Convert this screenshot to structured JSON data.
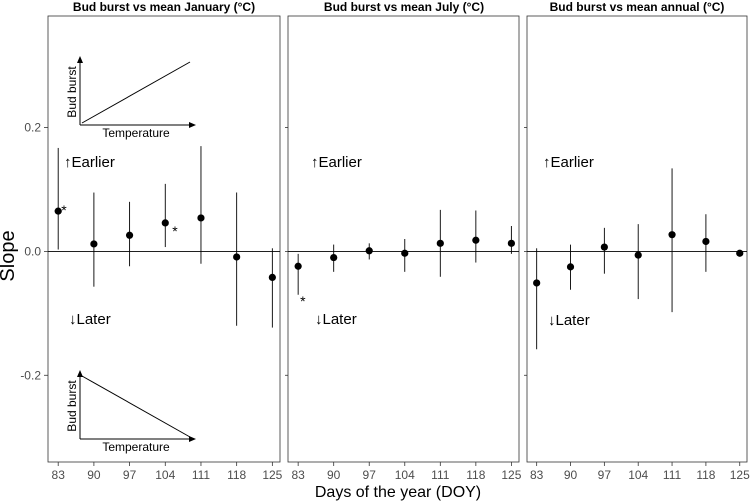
{
  "chart_data": {
    "type": "scatter",
    "ylabel": "Slope",
    "xlabel": "Days of the year (DOY)",
    "x_ticks": [
      83,
      90,
      97,
      104,
      111,
      118,
      125
    ],
    "y_ticks": [
      -0.2,
      0.0,
      0.2
    ],
    "y_tick_labels": [
      "-0.2",
      "0.0",
      "0.2"
    ],
    "ylim": [
      -0.34,
      0.38
    ],
    "xlim": [
      81,
      126.5
    ],
    "zero_line": true,
    "grid": false,
    "annotations": {
      "earlier": "↑Earlier",
      "later": "↓Later"
    },
    "inset": {
      "ylabel": "Bud burst",
      "xlabel": "Temperature"
    },
    "panels": [
      {
        "title": "Bud burst vs mean January (°C)",
        "points": [
          {
            "x": 83,
            "y": 0.065,
            "lo": 0.003,
            "hi": 0.167,
            "sig": "*"
          },
          {
            "x": 90,
            "y": 0.012,
            "lo": -0.057,
            "hi": 0.095,
            "sig": ""
          },
          {
            "x": 97,
            "y": 0.026,
            "lo": -0.024,
            "hi": 0.08,
            "sig": ""
          },
          {
            "x": 104,
            "y": 0.046,
            "lo": 0.007,
            "hi": 0.109,
            "sig": "*"
          },
          {
            "x": 111,
            "y": 0.054,
            "lo": -0.02,
            "hi": 0.17,
            "sig": ""
          },
          {
            "x": 118,
            "y": -0.009,
            "lo": -0.12,
            "hi": 0.095,
            "sig": ""
          },
          {
            "x": 125,
            "y": -0.042,
            "lo": -0.123,
            "hi": 0.005,
            "sig": ""
          }
        ]
      },
      {
        "title": "Bud burst vs mean July (°C)",
        "points": [
          {
            "x": 83,
            "y": -0.024,
            "lo": -0.07,
            "hi": -0.004,
            "sig": "*"
          },
          {
            "x": 90,
            "y": -0.01,
            "lo": -0.033,
            "hi": 0.011,
            "sig": ""
          },
          {
            "x": 97,
            "y": 0.001,
            "lo": -0.013,
            "hi": 0.013,
            "sig": ""
          },
          {
            "x": 104,
            "y": -0.003,
            "lo": -0.033,
            "hi": 0.02,
            "sig": ""
          },
          {
            "x": 111,
            "y": 0.013,
            "lo": -0.041,
            "hi": 0.067,
            "sig": ""
          },
          {
            "x": 118,
            "y": 0.018,
            "lo": -0.018,
            "hi": 0.066,
            "sig": ""
          },
          {
            "x": 125,
            "y": 0.013,
            "lo": -0.004,
            "hi": 0.041,
            "sig": ""
          }
        ]
      },
      {
        "title": "Bud burst vs mean annual (°C)",
        "points": [
          {
            "x": 83,
            "y": -0.051,
            "lo": -0.158,
            "hi": 0.005,
            "sig": ""
          },
          {
            "x": 90,
            "y": -0.025,
            "lo": -0.062,
            "hi": 0.011,
            "sig": ""
          },
          {
            "x": 97,
            "y": 0.007,
            "lo": -0.036,
            "hi": 0.038,
            "sig": ""
          },
          {
            "x": 104,
            "y": -0.006,
            "lo": -0.077,
            "hi": 0.044,
            "sig": ""
          },
          {
            "x": 111,
            "y": 0.027,
            "lo": -0.098,
            "hi": 0.134,
            "sig": ""
          },
          {
            "x": 118,
            "y": 0.016,
            "lo": -0.033,
            "hi": 0.06,
            "sig": ""
          },
          {
            "x": 125,
            "y": -0.003,
            "lo": -0.003,
            "hi": -0.003,
            "sig": ""
          }
        ]
      }
    ]
  }
}
